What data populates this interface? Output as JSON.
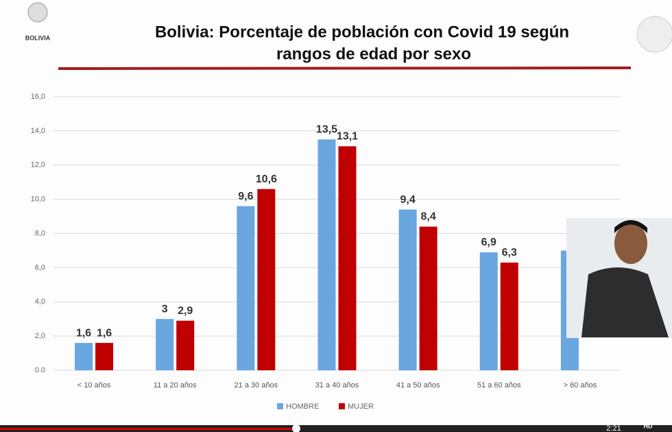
{
  "logo_text": "BOLIVIA",
  "chart_data": {
    "type": "bar",
    "title": [
      "Bolivia: Porcentaje de población con Covid 19 según",
      "rangos de edad por sexo"
    ],
    "categories": [
      "< 10 años",
      "11 a 20 años",
      "21 a 30 años",
      "31 a 40 años",
      "41 a 50 años",
      "51 a 60 años",
      "> 60 años"
    ],
    "series": [
      {
        "name": "HOMBRE",
        "color": "#6aa6e0",
        "values": [
          1.6,
          3,
          9.6,
          13.5,
          9.4,
          6.9,
          7.0
        ],
        "value_labels": [
          "1,6",
          "3",
          "9,6",
          "13,5",
          "9,4",
          "6,9",
          null
        ]
      },
      {
        "name": "MUJER",
        "color": "#c00000",
        "values": [
          1.6,
          2.9,
          10.6,
          13.1,
          8.4,
          6.3,
          null
        ],
        "value_labels": [
          "1,6",
          "2,9",
          "10,6",
          "13,1",
          "8,4",
          "6,3",
          null
        ]
      }
    ],
    "ylim": [
      0,
      16
    ],
    "yticks": [
      {
        "value": 0,
        "label": "0.0"
      },
      {
        "value": 2,
        "label": "2,0"
      },
      {
        "value": 4,
        "label": "4,0"
      },
      {
        "value": 6,
        "label": "6,0"
      },
      {
        "value": 8,
        "label": "8,0"
      },
      {
        "value": 10,
        "label": "10,0"
      },
      {
        "value": 12,
        "label": "12,0"
      },
      {
        "value": 14,
        "label": "14,0"
      },
      {
        "value": 16,
        "label": "16,0"
      }
    ],
    "grid": true,
    "legend": "bottom"
  },
  "player": {
    "time": "2:21",
    "quality": "HD"
  }
}
